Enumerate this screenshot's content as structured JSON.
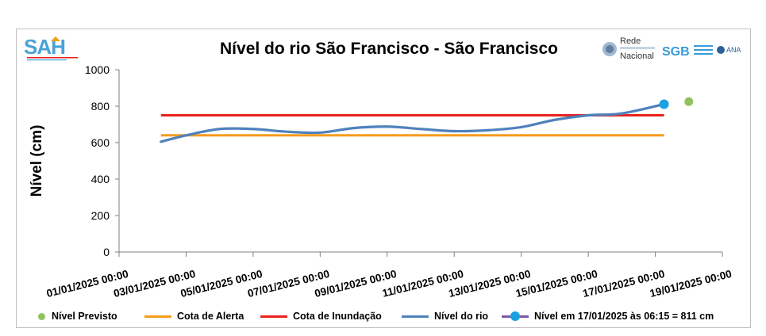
{
  "chart_data": {
    "type": "line",
    "title": "Nível do rio São Francisco - São Francisco",
    "ylabel": "Nível (cm)",
    "xlabel": "",
    "ylim": [
      0,
      1000
    ],
    "yticks": [
      "0",
      "200",
      "400",
      "600",
      "800",
      "1000"
    ],
    "xlim": [
      "2025-01-01",
      "2025-01-19"
    ],
    "xticks": [
      "01/01/2025 00:00",
      "03/01/2025 00:00",
      "05/01/2025 00:00",
      "07/01/2025 00:00",
      "09/01/2025 00:00",
      "11/01/2025 00:00",
      "13/01/2025 00:00",
      "15/01/2025 00:00",
      "17/01/2025 00:00",
      "19/01/2025 00:00"
    ],
    "series": [
      {
        "name": "Nível do rio",
        "color": "#4f81bd",
        "x": [
          "2025-01-02 06:00",
          "2025-01-03 00:00",
          "2025-01-04 00:00",
          "2025-01-05 00:00",
          "2025-01-06 00:00",
          "2025-01-07 00:00",
          "2025-01-08 00:00",
          "2025-01-09 00:00",
          "2025-01-10 00:00",
          "2025-01-11 00:00",
          "2025-01-12 00:00",
          "2025-01-13 00:00",
          "2025-01-14 00:00",
          "2025-01-15 00:00",
          "2025-01-16 00:00",
          "2025-01-17 06:15"
        ],
        "y": [
          605,
          640,
          675,
          675,
          660,
          655,
          680,
          688,
          675,
          663,
          668,
          685,
          725,
          750,
          760,
          811
        ]
      },
      {
        "name": "Cota de Alerta",
        "color": "#f79c1b",
        "x": [
          "2025-01-02 06:00",
          "2025-01-17 06:15"
        ],
        "y": [
          640,
          640
        ]
      },
      {
        "name": "Cota de Inundação",
        "color": "#e8221c",
        "x": [
          "2025-01-02 06:00",
          "2025-01-17 06:15"
        ],
        "y": [
          750,
          750
        ]
      },
      {
        "name": "Nível Previsto",
        "color": "#8fc25d",
        "x": [
          "2025-01-18 00:00"
        ],
        "y": [
          825
        ]
      },
      {
        "name": "Nível em 17/01/2025 às 06:15 = 811 cm",
        "color": "#1ba1e2",
        "x": [
          "2025-01-17 06:15"
        ],
        "y": [
          811
        ]
      }
    ],
    "legend": "bottom",
    "grid": false
  },
  "logos": {
    "sah": "SAH",
    "rede_line1": "Rede",
    "rede_line2": "Nacional",
    "sgb": "SGB",
    "ana": "ANA"
  }
}
